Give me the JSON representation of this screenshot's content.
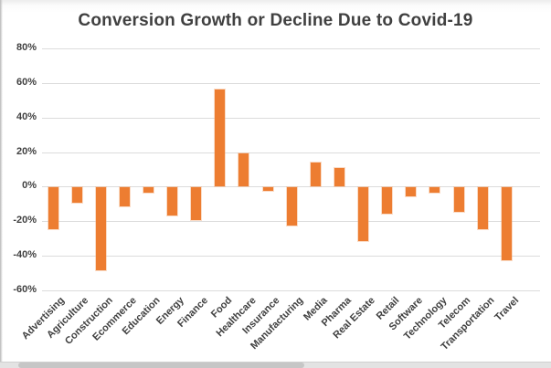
{
  "colors": {
    "bar": "#ED7D31",
    "grid": "#DCDCDC",
    "title_text": "#404040",
    "axis_text": "#3F3F3F",
    "background": "#FFFFFF"
  },
  "chart_data": {
    "type": "bar",
    "title": "Conversion Growth or Decline Due to Covid-19",
    "categories": [
      "Advertising",
      "Agriculture",
      "Construction",
      "Ecommerce",
      "Education",
      "Energy",
      "Finance",
      "Food",
      "Healthcare",
      "Insurance",
      "Manufacturing",
      "Media",
      "Pharma",
      "Real Estate",
      "Retail",
      "Software",
      "Technology",
      "Telecom",
      "Transportation",
      "Travel"
    ],
    "values": [
      -24,
      -9,
      -48,
      -11,
      -3,
      -16,
      -19,
      56,
      19,
      -2,
      -22,
      14,
      11,
      -31,
      -15,
      -5,
      -3,
      -14,
      -24,
      -42
    ],
    "value_unit": "%",
    "xlabel": "",
    "ylabel": "",
    "ylim": [
      -60,
      80
    ],
    "ytick_step": 20,
    "ytick_labels": [
      "80%",
      "60%",
      "40%",
      "20%",
      "0%",
      "-20%",
      "-40%",
      "-60%"
    ],
    "grid": true,
    "legend": false,
    "bar_color": "#ED7D31"
  }
}
